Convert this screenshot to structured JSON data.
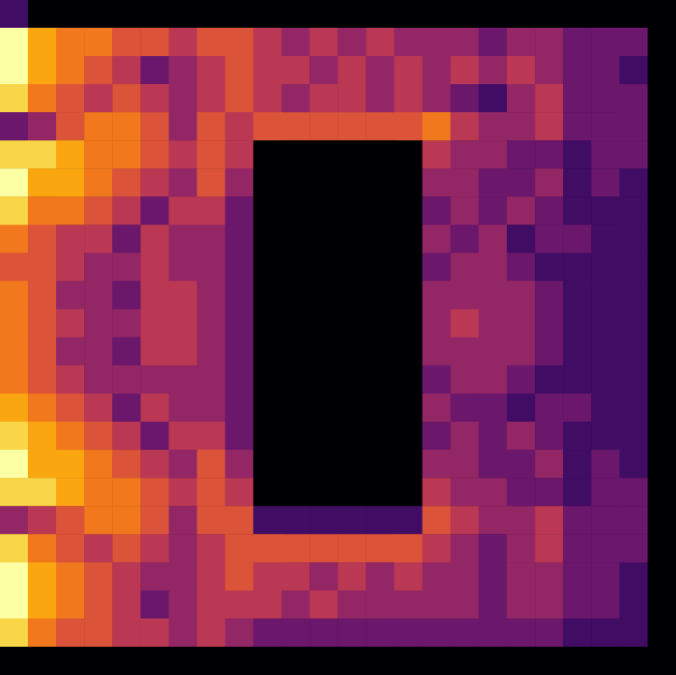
{
  "chart_data": {
    "type": "heatmap",
    "tick_labels": false,
    "clim": [
      0,
      10
    ],
    "cells": [
      [
        2,
        0,
        0,
        0,
        0,
        0,
        0,
        0,
        0,
        0,
        0,
        0,
        0,
        0,
        0,
        0,
        0,
        0,
        0,
        0,
        0,
        0,
        0,
        0
      ],
      [
        10,
        8,
        7,
        7,
        6,
        6,
        5,
        6,
        6,
        5,
        4,
        5,
        4,
        5,
        4,
        4,
        4,
        3,
        4,
        4,
        3,
        3,
        3,
        0
      ],
      [
        10,
        8,
        7,
        6,
        5,
        3,
        4,
        5,
        6,
        5,
        5,
        4,
        5,
        4,
        5,
        4,
        5,
        4,
        5,
        4,
        3,
        3,
        2,
        0
      ],
      [
        9,
        7,
        6,
        5,
        6,
        5,
        4,
        5,
        6,
        5,
        4,
        5,
        5,
        4,
        5,
        4,
        3,
        2,
        4,
        5,
        3,
        3,
        3,
        0
      ],
      [
        3,
        4,
        6,
        7,
        7,
        6,
        4,
        6,
        5,
        6,
        6,
        6,
        6,
        6,
        6,
        7,
        5,
        4,
        4,
        5,
        3,
        3,
        3,
        0
      ],
      [
        9,
        9,
        8,
        7,
        7,
        6,
        5,
        6,
        5,
        0,
        0,
        0,
        0,
        0,
        0,
        5,
        4,
        4,
        3,
        3,
        2,
        3,
        3,
        0
      ],
      [
        10,
        8,
        8,
        7,
        6,
        5,
        4,
        6,
        4,
        0,
        0,
        0,
        0,
        0,
        0,
        4,
        4,
        3,
        3,
        4,
        2,
        3,
        2,
        0
      ],
      [
        9,
        7,
        7,
        6,
        5,
        3,
        5,
        5,
        3,
        0,
        0,
        0,
        0,
        0,
        0,
        3,
        4,
        3,
        4,
        3,
        2,
        2,
        2,
        0
      ],
      [
        7,
        6,
        5,
        5,
        3,
        5,
        4,
        4,
        3,
        0,
        0,
        0,
        0,
        0,
        0,
        4,
        3,
        4,
        2,
        3,
        3,
        2,
        2,
        0
      ],
      [
        6,
        6,
        5,
        4,
        4,
        5,
        4,
        4,
        3,
        0,
        0,
        0,
        0,
        0,
        0,
        3,
        4,
        4,
        3,
        2,
        2,
        2,
        2,
        0
      ],
      [
        7,
        6,
        4,
        4,
        3,
        5,
        5,
        4,
        3,
        0,
        0,
        0,
        0,
        0,
        0,
        4,
        4,
        4,
        4,
        3,
        2,
        2,
        2,
        0
      ],
      [
        7,
        6,
        5,
        4,
        4,
        5,
        5,
        4,
        3,
        0,
        0,
        0,
        0,
        0,
        0,
        4,
        5,
        4,
        4,
        3,
        2,
        2,
        2,
        0
      ],
      [
        7,
        6,
        4,
        4,
        3,
        5,
        5,
        4,
        3,
        0,
        0,
        0,
        0,
        0,
        0,
        4,
        4,
        4,
        4,
        3,
        2,
        2,
        2,
        0
      ],
      [
        7,
        6,
        5,
        4,
        4,
        4,
        4,
        4,
        3,
        0,
        0,
        0,
        0,
        0,
        0,
        3,
        4,
        4,
        3,
        2,
        2,
        2,
        2,
        0
      ],
      [
        8,
        7,
        6,
        5,
        3,
        5,
        4,
        4,
        3,
        0,
        0,
        0,
        0,
        0,
        0,
        4,
        3,
        3,
        2,
        3,
        3,
        2,
        2,
        0
      ],
      [
        9,
        8,
        7,
        6,
        5,
        3,
        5,
        5,
        3,
        0,
        0,
        0,
        0,
        0,
        0,
        3,
        4,
        3,
        4,
        3,
        2,
        2,
        2,
        0
      ],
      [
        10,
        8,
        8,
        7,
        6,
        5,
        4,
        6,
        4,
        0,
        0,
        0,
        0,
        0,
        0,
        4,
        4,
        3,
        3,
        4,
        2,
        3,
        2,
        0
      ],
      [
        9,
        9,
        8,
        7,
        7,
        6,
        5,
        6,
        5,
        0,
        0,
        0,
        0,
        0,
        0,
        5,
        4,
        4,
        3,
        3,
        2,
        3,
        3,
        0
      ],
      [
        4,
        5,
        6,
        7,
        7,
        6,
        4,
        6,
        6,
        2,
        2,
        2,
        2,
        2,
        2,
        6,
        5,
        4,
        4,
        5,
        3,
        3,
        3,
        0
      ],
      [
        9,
        7,
        6,
        5,
        6,
        5,
        4,
        5,
        6,
        6,
        6,
        6,
        6,
        6,
        6,
        5,
        4,
        3,
        4,
        5,
        3,
        3,
        3,
        0
      ],
      [
        10,
        8,
        7,
        6,
        5,
        4,
        4,
        5,
        6,
        5,
        5,
        4,
        5,
        4,
        5,
        4,
        4,
        3,
        4,
        4,
        3,
        3,
        2,
        0
      ],
      [
        10,
        8,
        7,
        6,
        5,
        3,
        4,
        5,
        5,
        5,
        4,
        5,
        4,
        4,
        4,
        4,
        4,
        3,
        4,
        4,
        3,
        3,
        2,
        0
      ],
      [
        9,
        7,
        6,
        6,
        5,
        5,
        4,
        5,
        4,
        3,
        3,
        3,
        3,
        3,
        3,
        3,
        3,
        3,
        3,
        3,
        2,
        2,
        2,
        0
      ],
      [
        0,
        0,
        0,
        0,
        0,
        0,
        0,
        0,
        0,
        0,
        0,
        0,
        0,
        0,
        0,
        0,
        0,
        0,
        0,
        0,
        0,
        0,
        0,
        0
      ]
    ]
  }
}
